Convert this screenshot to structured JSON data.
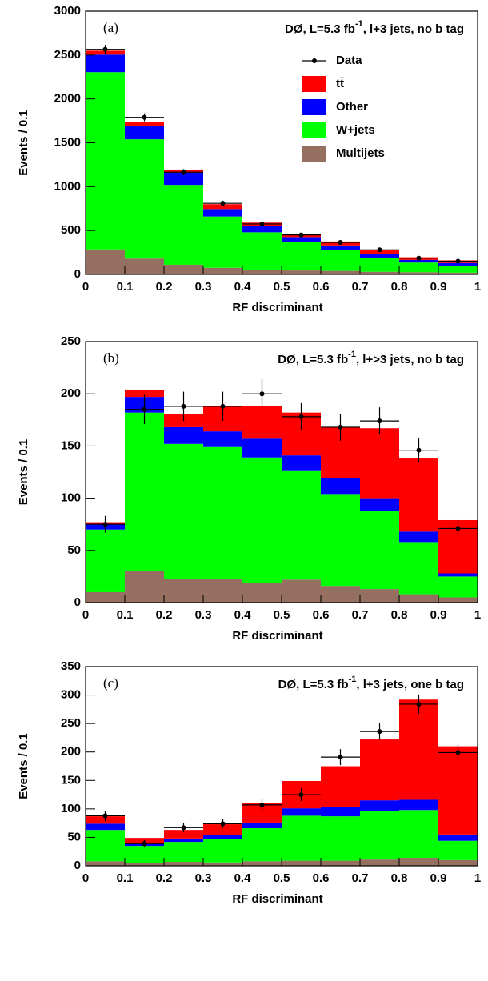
{
  "chart_data": [
    {
      "type": "stacked-histogram",
      "panel": "(a)",
      "annotation": [
        "DØ, L=5.3 fb",
        "-1",
        ", l+3 jets, no b tag"
      ],
      "x_label": "RF discriminant",
      "y_label": "Events / 0.1",
      "bins": [
        0,
        0.1,
        0.2,
        0.3,
        0.4,
        0.5,
        0.6,
        0.7,
        0.8,
        0.9,
        1
      ],
      "series": [
        {
          "name": "Multijets",
          "color": "#957060",
          "values": [
            285,
            180,
            110,
            75,
            55,
            45,
            40,
            30,
            25,
            20
          ]
        },
        {
          "name": "W+jets",
          "color": "#00ff00",
          "values": [
            2020,
            1360,
            910,
            585,
            425,
            325,
            235,
            160,
            110,
            80
          ]
        },
        {
          "name": "Other",
          "color": "#0000ff",
          "values": [
            200,
            155,
            140,
            85,
            75,
            55,
            55,
            45,
            30,
            30
          ]
        },
        {
          "name": "tt̄",
          "color": "#ff0000",
          "values": [
            45,
            45,
            35,
            55,
            35,
            40,
            45,
            40,
            30,
            30
          ]
        }
      ],
      "data": {
        "name": "Data",
        "values": [
          2565,
          1790,
          1165,
          810,
          575,
          450,
          365,
          280,
          185,
          150
        ],
        "errors": [
          50,
          45,
          35,
          30,
          25,
          20,
          20,
          17,
          14,
          12
        ]
      },
      "xlim": [
        0,
        1
      ],
      "xticks": [
        0,
        0.1,
        0.2,
        0.3,
        0.4,
        0.5,
        0.6,
        0.7,
        0.8,
        0.9,
        1
      ],
      "ylim": [
        0,
        3000
      ],
      "yticks": [
        0,
        500,
        1000,
        1500,
        2000,
        2500,
        3000
      ],
      "legend": "upper right"
    },
    {
      "type": "stacked-histogram",
      "panel": "(b)",
      "annotation": [
        "DØ, L=5.3 fb",
        "-1",
        ", l+>3 jets, no b tag"
      ],
      "x_label": "RF discriminant",
      "y_label": "Events / 0.1",
      "bins": [
        0,
        0.1,
        0.2,
        0.3,
        0.4,
        0.5,
        0.6,
        0.7,
        0.8,
        0.9,
        1
      ],
      "series": [
        {
          "name": "Multijets",
          "color": "#957060",
          "values": [
            10,
            30,
            23,
            23,
            19,
            22,
            16,
            13,
            8,
            5
          ]
        },
        {
          "name": "W+jets",
          "color": "#00ff00",
          "values": [
            60,
            152,
            129,
            126,
            120,
            104,
            88,
            75,
            50,
            20
          ]
        },
        {
          "name": "Other",
          "color": "#0000ff",
          "values": [
            5,
            15,
            16,
            15,
            18,
            15,
            15,
            12,
            10,
            3
          ]
        },
        {
          "name": "tt̄",
          "color": "#ff0000",
          "values": [
            2,
            7,
            13,
            24,
            31,
            41,
            49,
            67,
            70,
            51
          ]
        }
      ],
      "data": {
        "name": "Data",
        "values": [
          75,
          185,
          188,
          188,
          200,
          178,
          168,
          174,
          146,
          71
        ],
        "errors": [
          8,
          14,
          14,
          14,
          14,
          13,
          13,
          13,
          12,
          8
        ]
      },
      "xlim": [
        0,
        1
      ],
      "xticks": [
        0,
        0.1,
        0.2,
        0.3,
        0.4,
        0.5,
        0.6,
        0.7,
        0.8,
        0.9,
        1
      ],
      "ylim": [
        0,
        250
      ],
      "yticks": [
        0,
        50,
        100,
        150,
        200,
        250
      ]
    },
    {
      "type": "stacked-histogram",
      "panel": "(c)",
      "annotation": [
        "DØ, L=5.3 fb",
        "-1",
        ", l+3 jets, one b tag"
      ],
      "x_label": "RF discriminant",
      "y_label": "Events / 0.1",
      "bins": [
        0,
        0.1,
        0.2,
        0.3,
        0.4,
        0.5,
        0.6,
        0.7,
        0.8,
        0.9,
        1
      ],
      "series": [
        {
          "name": "Multijets",
          "color": "#957060",
          "values": [
            8,
            5,
            7,
            6,
            8,
            9,
            9,
            11,
            14,
            10
          ]
        },
        {
          "name": "W+jets",
          "color": "#00ff00",
          "values": [
            55,
            30,
            35,
            41,
            58,
            79,
            78,
            85,
            84,
            34
          ]
        },
        {
          "name": "Other",
          "color": "#0000ff",
          "values": [
            11,
            3,
            6,
            7,
            10,
            13,
            16,
            19,
            18,
            11
          ]
        },
        {
          "name": "tt̄",
          "color": "#ff0000",
          "values": [
            13,
            11,
            15,
            19,
            34,
            48,
            72,
            107,
            176,
            155
          ]
        }
      ],
      "data": {
        "name": "Data",
        "values": [
          88,
          39,
          67,
          74,
          107,
          125,
          191,
          236,
          284,
          199
        ],
        "errors": [
          9,
          6,
          8,
          8,
          10,
          11,
          14,
          15,
          17,
          14
        ]
      },
      "xlim": [
        0,
        1
      ],
      "xticks": [
        0,
        0.1,
        0.2,
        0.3,
        0.4,
        0.5,
        0.6,
        0.7,
        0.8,
        0.9,
        1
      ],
      "ylim": [
        0,
        350
      ],
      "yticks": [
        0,
        50,
        100,
        150,
        200,
        250,
        300,
        350
      ]
    }
  ]
}
